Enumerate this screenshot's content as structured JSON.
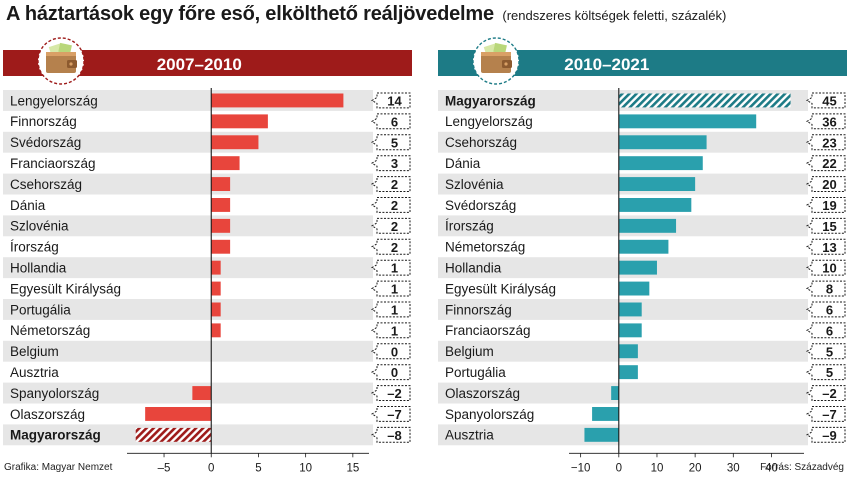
{
  "header": {
    "title": "A háztartások egy főre eső, elkölthető reáljövedelme",
    "subtitle": "(rendszeres költségek feletti, százalék)"
  },
  "footer": {
    "credit": "Grafika: Magyar Nemzet",
    "source": "Forrás: Századvég"
  },
  "colors": {
    "left_header": "#9e1b1a",
    "left_bar": "#e8453c",
    "left_highlight": "#9e1b1a",
    "right_header": "#1d7b86",
    "right_bar": "#2aa0ad",
    "right_highlight": "#1d7b86",
    "stripe": "#e6e6e6"
  },
  "chart_data": [
    {
      "type": "bar",
      "orientation": "horizontal",
      "title": "2007–2010",
      "icon": "wallet-icon",
      "highlight": "Magyarország",
      "categories": [
        "Lengyelország",
        "Finnország",
        "Svédország",
        "Franciaország",
        "Csehország",
        "Dánia",
        "Szlovénia",
        "Írország",
        "Hollandia",
        "Egyesült Királyság",
        "Portugália",
        "Németország",
        "Belgium",
        "Ausztria",
        "Spanyolország",
        "Olaszország",
        "Magyarország"
      ],
      "values": [
        14,
        6,
        5,
        3,
        2,
        2,
        2,
        2,
        1,
        1,
        1,
        1,
        0,
        0,
        -2,
        -7,
        -8
      ],
      "value_labels": [
        "14",
        "6",
        "5",
        "3",
        "2",
        "2",
        "2",
        "2",
        "1",
        "1",
        "1",
        "1",
        "0",
        "0",
        "–2",
        "–7",
        "–8"
      ],
      "xlim": [
        -8.5,
        16.5
      ],
      "xticks": [
        -5,
        0,
        5,
        10,
        15
      ],
      "xtick_labels": [
        "–5",
        "0",
        "5",
        "10",
        "15"
      ]
    },
    {
      "type": "bar",
      "orientation": "horizontal",
      "title": "2010–2021",
      "icon": "wallet-icon",
      "highlight": "Magyarország",
      "categories": [
        "Magyarország",
        "Lengyelország",
        "Csehország",
        "Dánia",
        "Szlovénia",
        "Svédország",
        "Írország",
        "Németország",
        "Hollandia",
        "Egyesült Királyság",
        "Finnország",
        "Franciaország",
        "Belgium",
        "Portugália",
        "Olaszország",
        "Spanyolország",
        "Ausztria"
      ],
      "values": [
        45,
        36,
        23,
        22,
        20,
        19,
        15,
        13,
        10,
        8,
        6,
        6,
        5,
        5,
        -2,
        -7,
        -9
      ],
      "value_labels": [
        "45",
        "36",
        "23",
        "22",
        "20",
        "19",
        "15",
        "13",
        "10",
        "8",
        "6",
        "6",
        "5",
        "5",
        "–2",
        "–7",
        "–9"
      ],
      "xlim": [
        -12,
        48
      ],
      "xticks": [
        -10,
        0,
        10,
        20,
        30,
        40
      ],
      "xtick_labels": [
        "−10",
        "0",
        "10",
        "20",
        "30",
        "40"
      ]
    }
  ]
}
